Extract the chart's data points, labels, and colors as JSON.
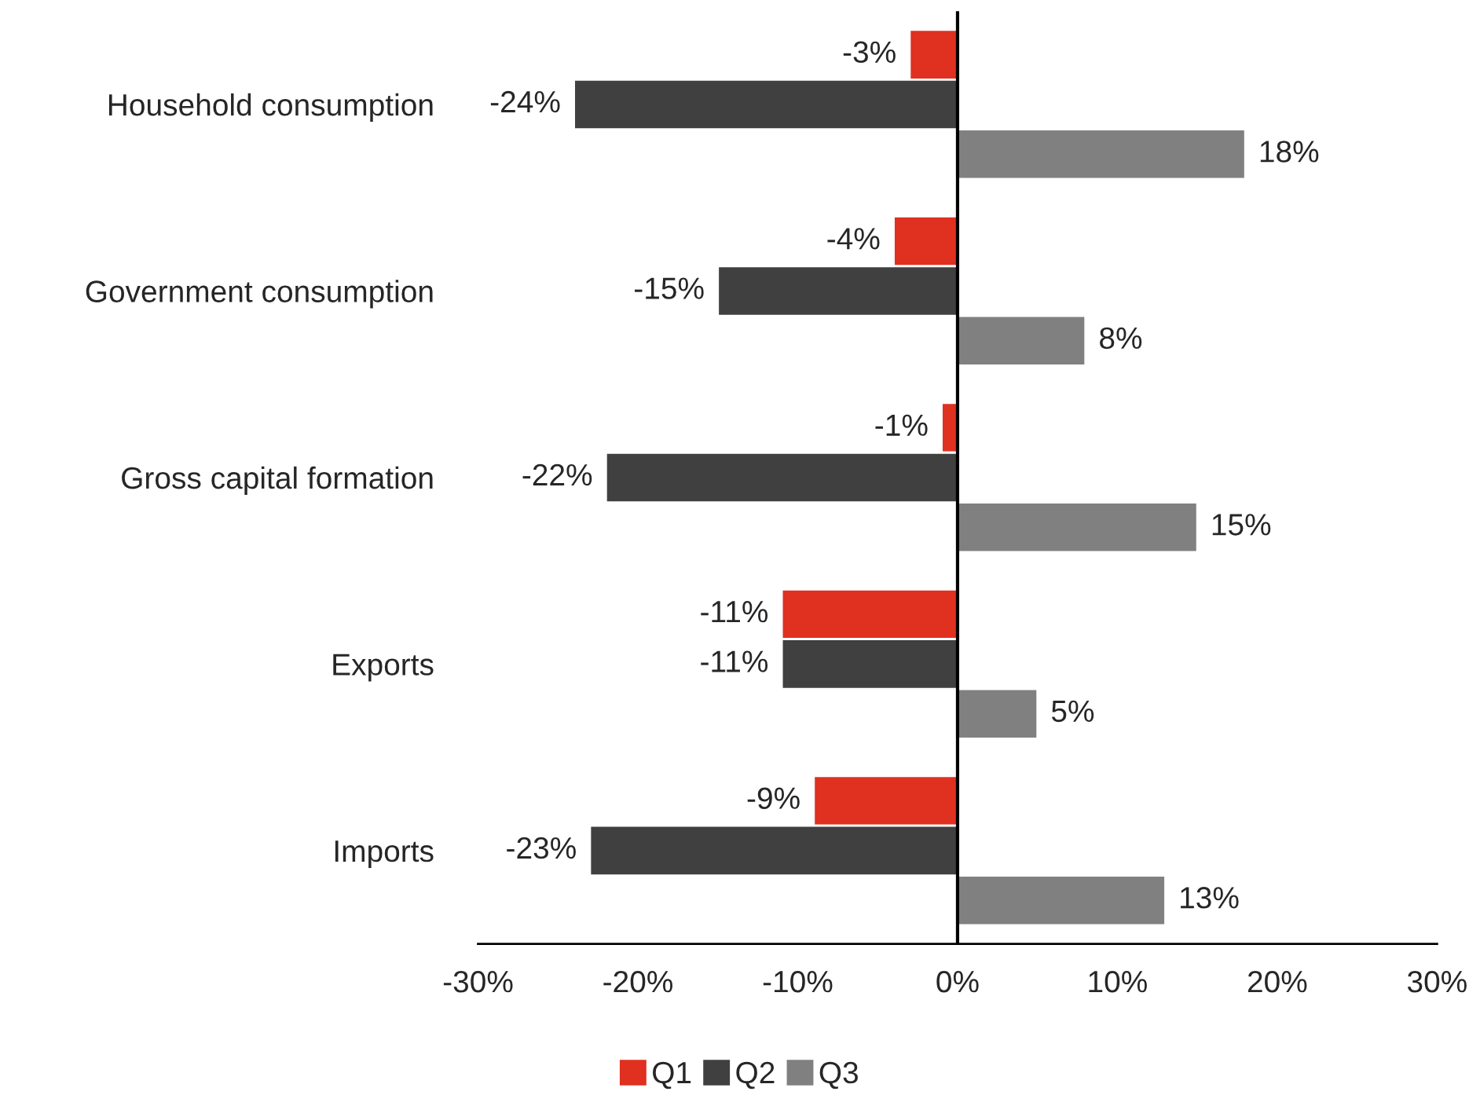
{
  "chart_data": {
    "type": "bar",
    "orientation": "horizontal",
    "categories": [
      "Household consumption",
      "Government consumption",
      "Gross capital formation",
      "Exports",
      "Imports"
    ],
    "series": [
      {
        "name": "Q1",
        "color": "#e03020",
        "values": [
          -3,
          -4,
          -1,
          -11,
          -9
        ],
        "value_labels": [
          "-3%",
          "-4%",
          "-1%",
          "-11%",
          "-9%"
        ]
      },
      {
        "name": "Q2",
        "color": "#404040",
        "values": [
          -24,
          -15,
          -22,
          -11,
          -23
        ],
        "value_labels": [
          "-24%",
          "-15%",
          "-22%",
          "-11%",
          "-23%"
        ]
      },
      {
        "name": "Q3",
        "color": "#808080",
        "values": [
          18,
          8,
          15,
          5,
          13
        ],
        "value_labels": [
          "18%",
          "8%",
          "15%",
          "5%",
          "13%"
        ]
      }
    ],
    "xlim": [
      -30,
      30
    ],
    "xticks": [
      {
        "value": -30,
        "label": "-30%"
      },
      {
        "value": -20,
        "label": "-20%"
      },
      {
        "value": -10,
        "label": "-10%"
      },
      {
        "value": 0,
        "label": "0%"
      },
      {
        "value": 10,
        "label": "10%"
      },
      {
        "value": 20,
        "label": "20%"
      },
      {
        "value": 30,
        "label": "30%"
      }
    ],
    "ref_lines": [
      {
        "axis": "x",
        "value": 0,
        "color": "#000000"
      }
    ],
    "legend": "bottom"
  }
}
